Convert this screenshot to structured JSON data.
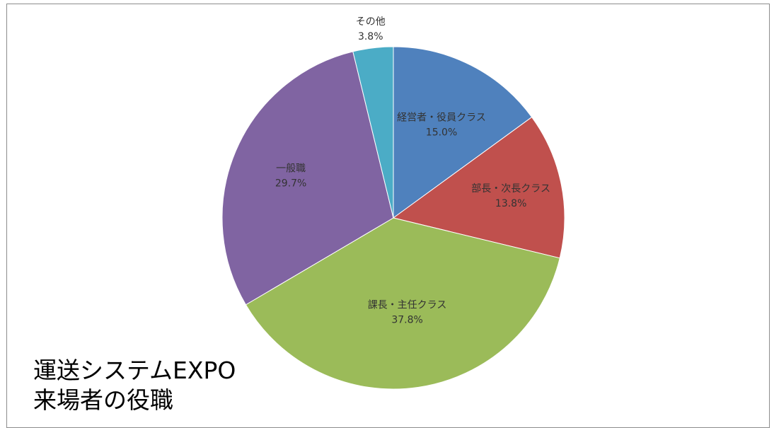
{
  "chart_data": {
    "type": "pie",
    "title_lines": [
      "運送システムEXPO",
      "来場者の役職"
    ],
    "xlabel": "",
    "ylabel": "",
    "legend": "none",
    "grid": false,
    "slices": [
      {
        "label": "経営者・役員クラス",
        "value": 15.0,
        "value_label": "15.0%",
        "color": "#4f81bd"
      },
      {
        "label": "部長・次長クラス",
        "value": 13.8,
        "value_label": "13.8%",
        "color": "#c0504d"
      },
      {
        "label": "課長・主任クラス",
        "value": 37.8,
        "value_label": "37.8%",
        "color": "#9bbb59"
      },
      {
        "label": "一般職",
        "value": 29.7,
        "value_label": "29.7%",
        "color": "#8064a2"
      },
      {
        "label": "その他",
        "value": 3.8,
        "value_label": "3.8%",
        "color": "#4bacc6"
      }
    ]
  }
}
